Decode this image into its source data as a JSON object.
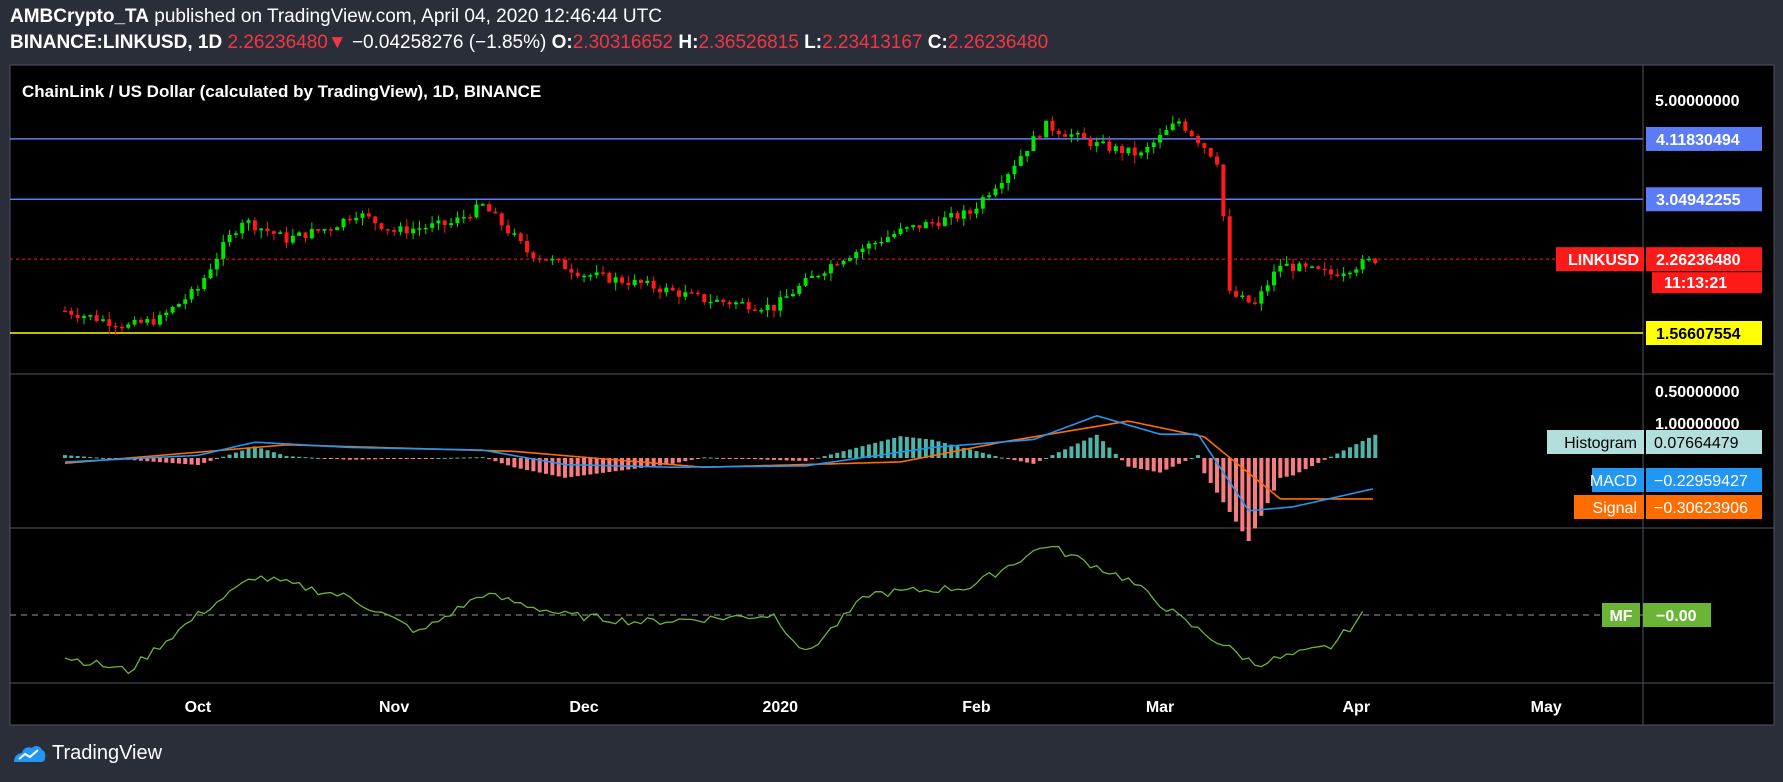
{
  "header": {
    "author": "AMBCrypto_TA",
    "published_text": " published on TradingView.com, April 04, 2020 12:46:44 UTC",
    "symbol": "BINANCE:LINKUSD, 1D",
    "last": "2.26236480",
    "change": "−0.04258276 (−1.85%)",
    "o_label": "O:",
    "o": "2.30316652",
    "h_label": "H:",
    "h": "2.36526815",
    "l_label": "L:",
    "l": "2.23413167",
    "c_label": "C:",
    "c": "2.26236480"
  },
  "main": {
    "title": "ChainLink / US Dollar (calculated by TradingView), 1D, BINANCE"
  },
  "footer": {
    "brand": "TradingView"
  },
  "colors": {
    "bg": "#000000",
    "frame": "#2a2e39",
    "up": "#26a69a",
    "candle_up": "#00e600",
    "candle_down": "#ff1a1a",
    "hline": "#5b7cf5",
    "support": "#ffff00",
    "macd": "#2196f3",
    "signal": "#ff6d00",
    "mf": "#6bb536"
  },
  "chart_data": [
    {
      "type": "candlestick",
      "title": "ChainLink / US Dollar (calculated by TradingView), 1D, BINANCE",
      "series_name": "LINKUSD",
      "x_ticks": [
        "Oct",
        "Nov",
        "Dec",
        "2020",
        "Feb",
        "Mar",
        "Apr",
        "May"
      ],
      "y_ticks": [
        "5.00000000",
        "1.00000000"
      ],
      "y_scale": "log",
      "current_price": "2.26236480",
      "countdown": "11:13:21",
      "horizontal_levels": [
        {
          "value": "4.11830494",
          "color": "#5b7cf5"
        },
        {
          "value": "3.04942255",
          "color": "#5b7cf5"
        },
        {
          "value": "1.56607554",
          "color": "#ffff00"
        }
      ],
      "close_path": [
        [
          "2019-09-10",
          1.75
        ],
        [
          "2019-09-20",
          1.62
        ],
        [
          "2019-09-25",
          1.68
        ],
        [
          "2019-10-01",
          1.95
        ],
        [
          "2019-10-08",
          2.75
        ],
        [
          "2019-10-15",
          2.5
        ],
        [
          "2019-10-22",
          2.65
        ],
        [
          "2019-10-26",
          2.85
        ],
        [
          "2019-11-01",
          2.6
        ],
        [
          "2019-11-10",
          2.7
        ],
        [
          "2019-11-15",
          2.95
        ],
        [
          "2019-11-22",
          2.35
        ],
        [
          "2019-12-01",
          2.1
        ],
        [
          "2019-12-10",
          2.0
        ],
        [
          "2019-12-20",
          1.85
        ],
        [
          "2019-12-31",
          1.78
        ],
        [
          "2020-01-10",
          2.25
        ],
        [
          "2020-01-20",
          2.6
        ],
        [
          "2020-01-31",
          2.85
        ],
        [
          "2020-02-06",
          3.5
        ],
        [
          "2020-02-12",
          4.4
        ],
        [
          "2020-02-20",
          4.0
        ],
        [
          "2020-02-27",
          3.8
        ],
        [
          "2020-03-04",
          4.5
        ],
        [
          "2020-03-10",
          3.7
        ],
        [
          "2020-03-12",
          1.9
        ],
        [
          "2020-03-16",
          1.8
        ],
        [
          "2020-03-20",
          2.2
        ],
        [
          "2020-03-28",
          2.1
        ],
        [
          "2020-04-04",
          2.26
        ]
      ]
    },
    {
      "type": "line",
      "indicator": "MACD",
      "y_ticks": [
        "0.50000000"
      ],
      "series": [
        {
          "name": "Histogram",
          "value": "0.07664479",
          "color": "#26a69a"
        },
        {
          "name": "MACD",
          "value": "−0.22959427",
          "color": "#2196f3"
        },
        {
          "name": "Signal",
          "value": "−0.30623906",
          "color": "#ff6d00"
        }
      ],
      "macd_path": [
        [
          "2019-09-10",
          -0.03
        ],
        [
          "2019-10-01",
          0.02
        ],
        [
          "2019-10-10",
          0.12
        ],
        [
          "2019-10-25",
          0.08
        ],
        [
          "2019-11-15",
          0.06
        ],
        [
          "2019-11-28",
          -0.05
        ],
        [
          "2019-12-15",
          -0.07
        ],
        [
          "2020-01-05",
          -0.06
        ],
        [
          "2020-01-25",
          0.08
        ],
        [
          "2020-02-10",
          0.14
        ],
        [
          "2020-02-20",
          0.32
        ],
        [
          "2020-03-01",
          0.18
        ],
        [
          "2020-03-07",
          0.18
        ],
        [
          "2020-03-15",
          -0.4
        ],
        [
          "2020-03-22",
          -0.37
        ],
        [
          "2020-04-04",
          -0.23
        ]
      ],
      "signal_path": [
        [
          "2019-09-10",
          -0.04
        ],
        [
          "2019-10-15",
          0.1
        ],
        [
          "2019-11-20",
          0.05
        ],
        [
          "2019-12-20",
          -0.07
        ],
        [
          "2020-01-20",
          -0.03
        ],
        [
          "2020-02-05",
          0.12
        ],
        [
          "2020-02-25",
          0.28
        ],
        [
          "2020-03-08",
          0.16
        ],
        [
          "2020-03-20",
          -0.31
        ],
        [
          "2020-04-04",
          -0.31
        ]
      ]
    },
    {
      "type": "line",
      "indicator": "MF",
      "series": [
        {
          "name": "MF",
          "value": "−0.00",
          "color": "#6bb536"
        }
      ],
      "mf_path": [
        [
          "2019-09-10",
          -0.6
        ],
        [
          "2019-09-20",
          -0.8
        ],
        [
          "2019-10-01",
          0.0
        ],
        [
          "2019-10-10",
          0.55
        ],
        [
          "2019-10-25",
          0.25
        ],
        [
          "2019-11-05",
          -0.25
        ],
        [
          "2019-11-15",
          0.3
        ],
        [
          "2019-11-28",
          0.0
        ],
        [
          "2019-12-10",
          -0.1
        ],
        [
          "2019-12-31",
          0.0
        ],
        [
          "2020-01-05",
          -0.55
        ],
        [
          "2020-01-15",
          0.3
        ],
        [
          "2020-01-31",
          0.4
        ],
        [
          "2020-02-12",
          1.0
        ],
        [
          "2020-02-25",
          0.5
        ],
        [
          "2020-03-05",
          -0.1
        ],
        [
          "2020-03-16",
          -0.7
        ],
        [
          "2020-03-28",
          -0.45
        ],
        [
          "2020-04-02",
          0.0
        ]
      ]
    }
  ]
}
